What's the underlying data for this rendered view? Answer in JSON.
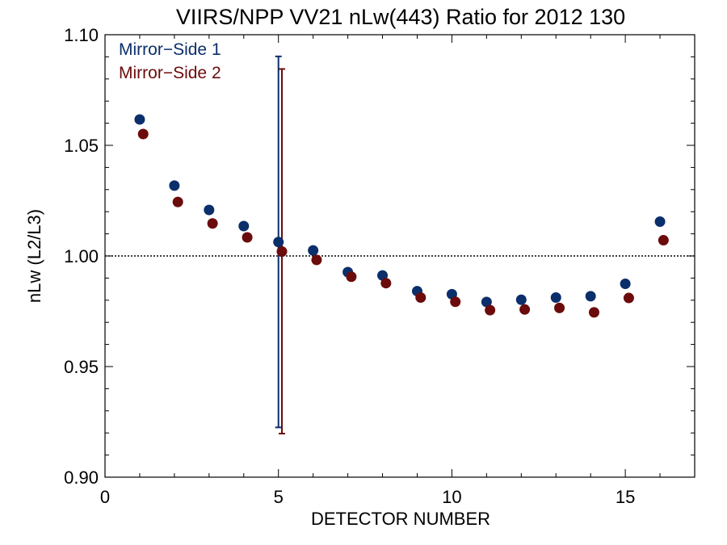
{
  "chart_data": {
    "type": "scatter",
    "title": "VIIRS/NPP VV21 nLw(443) Ratio for 2012 130",
    "xlabel": "DETECTOR NUMBER",
    "ylabel": "nLw (L2/L3)",
    "xlim": [
      0,
      17
    ],
    "ylim": [
      0.9,
      1.1
    ],
    "x_ticks": [
      0,
      5,
      10,
      15
    ],
    "x_tick_labels": [
      "0",
      "5",
      "10",
      "15"
    ],
    "y_ticks": [
      0.9,
      0.95,
      1.0,
      1.05,
      1.1
    ],
    "y_tick_labels": [
      "0.90",
      "0.95",
      "1.00",
      "1.05",
      "1.10"
    ],
    "reference_line": 1.0,
    "legend_position": "top-left",
    "series": [
      {
        "name": "Mirror−Side 1",
        "color": "#0b2f6b",
        "x": [
          1,
          2,
          3,
          4,
          5,
          6,
          7,
          8,
          9,
          10,
          11,
          12,
          13,
          14,
          15,
          16
        ],
        "values": [
          1.0617,
          1.0318,
          1.0208,
          1.0135,
          1.0063,
          1.0025,
          0.9927,
          0.9912,
          0.9841,
          0.9827,
          0.9792,
          0.9802,
          0.9812,
          0.9818,
          0.9874,
          1.0155
        ],
        "error_bar": {
          "x": 5,
          "low": 0.9225,
          "high": 1.0902
        }
      },
      {
        "name": "Mirror−Side 2",
        "color": "#6b0b0b",
        "x": [
          1.1,
          2.1,
          3.1,
          4.1,
          5.1,
          6.1,
          7.1,
          8.1,
          9.1,
          10.1,
          11.1,
          12.1,
          13.1,
          14.1,
          15.1,
          16.1
        ],
        "values": [
          1.0551,
          1.0244,
          1.0147,
          1.0084,
          1.002,
          0.9982,
          0.9906,
          0.9877,
          0.9812,
          0.9793,
          0.9755,
          0.9758,
          0.9765,
          0.9745,
          0.981,
          1.0071
        ],
        "error_bar": {
          "x": 5.1,
          "low": 0.9197,
          "high": 1.0845
        }
      }
    ]
  }
}
